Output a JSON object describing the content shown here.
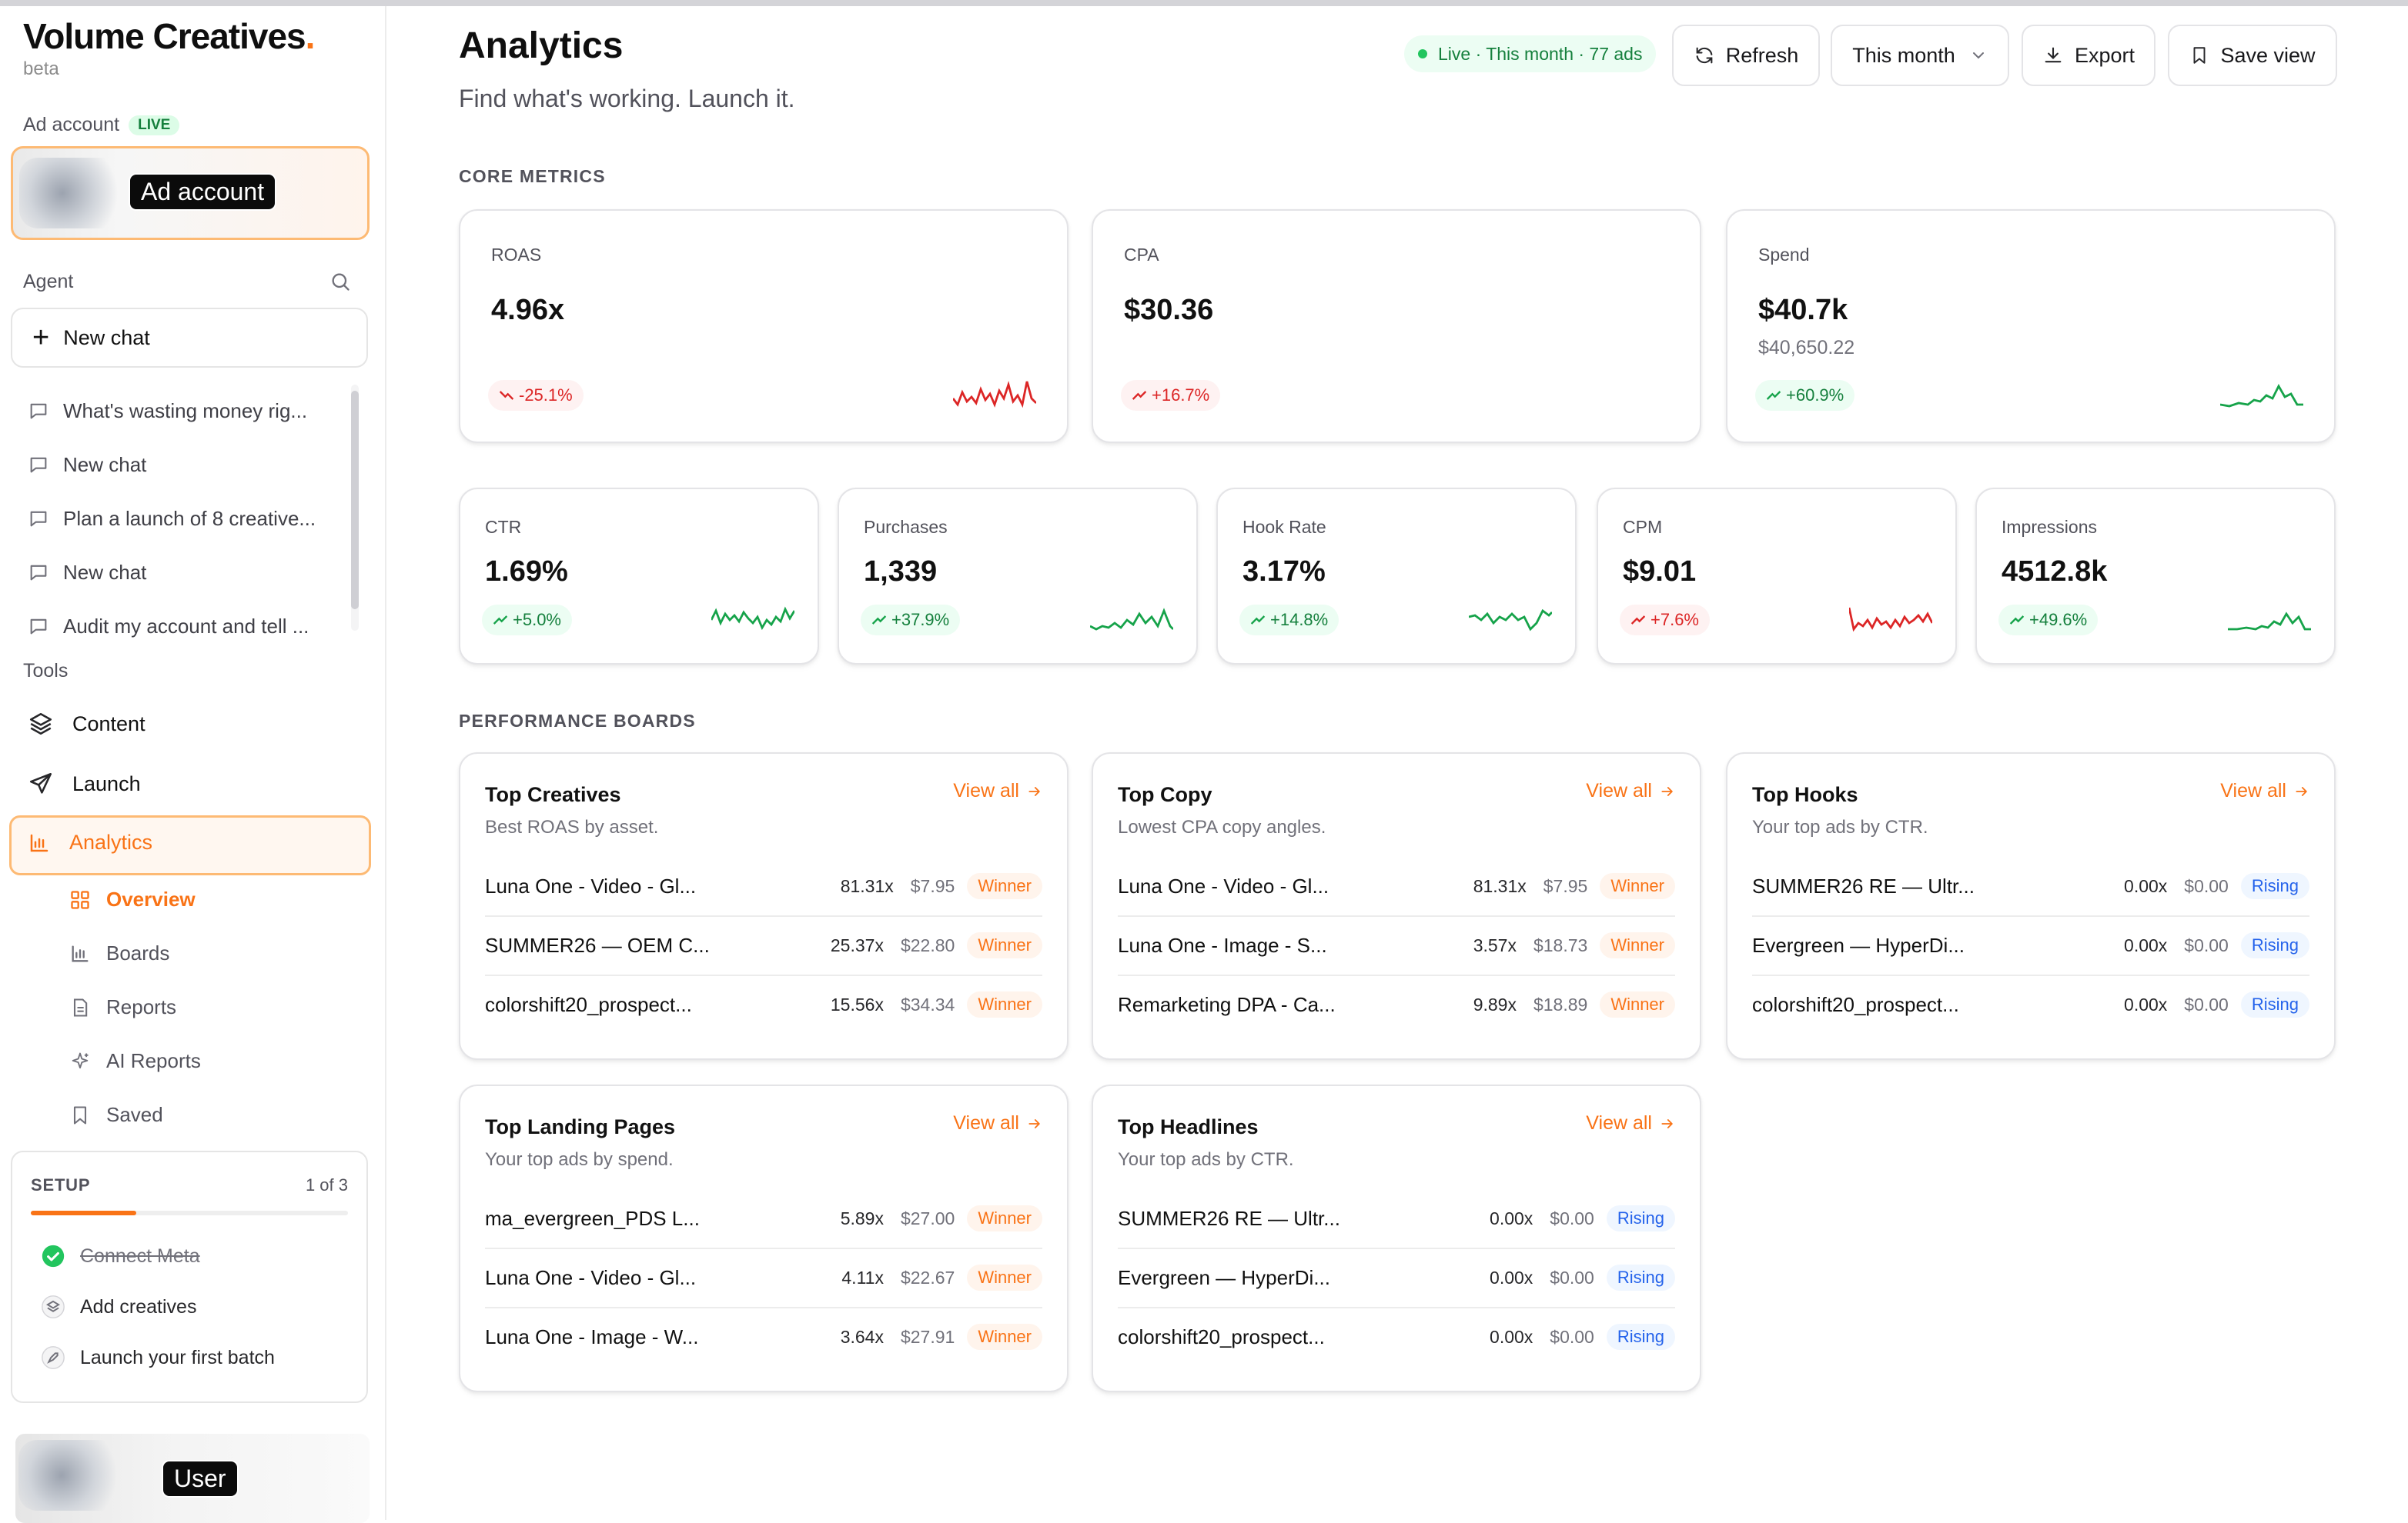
{
  "brand": {
    "name": "Volume Creatives",
    "dot": ".",
    "tag": "beta"
  },
  "sidebar": {
    "ad_account_label": "Ad account",
    "ad_account_badge": "LIVE",
    "ad_account_overlay": "Ad account",
    "agent_label": "Agent",
    "new_chat_label": "New chat",
    "chats": [
      "What's wasting money rig...",
      "New chat",
      "Plan a launch of 8 creative...",
      "New chat",
      "Audit my account and tell ..."
    ],
    "tools_label": "Tools",
    "tools": [
      "Content",
      "Launch",
      "Analytics"
    ],
    "analytics_sub": [
      "Overview",
      "Boards",
      "Reports",
      "AI Reports",
      "Saved"
    ],
    "setup": {
      "title": "SETUP",
      "count": "1 of 3",
      "progress": 0.333,
      "steps": [
        "Connect Meta",
        "Add creatives",
        "Launch your first batch"
      ]
    },
    "user_overlay": "User"
  },
  "header": {
    "title": "Analytics",
    "subtitle": "Find what's working. Launch it.",
    "live_pill": "Live · This month · 77 ads",
    "refresh": "Refresh",
    "range": "This month",
    "export": "Export",
    "save_view": "Save view"
  },
  "core": {
    "label": "CORE METRICS",
    "big": [
      {
        "label": "ROAS",
        "value": "4.96x",
        "sub": "",
        "delta": "-25.1%",
        "trend": "neg"
      },
      {
        "label": "CPA",
        "value": "$30.36",
        "sub": "",
        "delta": "+16.7%",
        "trend": "neg"
      },
      {
        "label": "Spend",
        "value": "$40.7k",
        "sub": "$40,650.22",
        "delta": "+60.9%",
        "trend": "pos"
      }
    ],
    "small": [
      {
        "label": "CTR",
        "value": "1.69%",
        "delta": "+5.0%",
        "trend": "pos"
      },
      {
        "label": "Purchases",
        "value": "1,339",
        "delta": "+37.9%",
        "trend": "pos"
      },
      {
        "label": "Hook Rate",
        "value": "3.17%",
        "delta": "+14.8%",
        "trend": "pos"
      },
      {
        "label": "CPM",
        "value": "$9.01",
        "delta": "+7.6%",
        "trend": "neg"
      },
      {
        "label": "Impressions",
        "value": "4512.8k",
        "delta": "+49.6%",
        "trend": "pos"
      }
    ]
  },
  "boards": {
    "label": "PERFORMANCE BOARDS",
    "view_all": "View all",
    "items": [
      {
        "title": "Top Creatives",
        "sub": "Best ROAS by asset.",
        "rows": [
          {
            "name": "Luna One - Video - Gl...",
            "roas": "81.31x",
            "cost": "$7.95",
            "tag": "Winner"
          },
          {
            "name": "SUMMER26 — OEM C...",
            "roas": "25.37x",
            "cost": "$22.80",
            "tag": "Winner"
          },
          {
            "name": "colorshift20_prospect...",
            "roas": "15.56x",
            "cost": "$34.34",
            "tag": "Winner"
          }
        ]
      },
      {
        "title": "Top Copy",
        "sub": "Lowest CPA copy angles.",
        "rows": [
          {
            "name": "Luna One - Video - Gl...",
            "roas": "81.31x",
            "cost": "$7.95",
            "tag": "Winner"
          },
          {
            "name": "Luna One - Image - S...",
            "roas": "3.57x",
            "cost": "$18.73",
            "tag": "Winner"
          },
          {
            "name": "Remarketing DPA - Ca...",
            "roas": "9.89x",
            "cost": "$18.89",
            "tag": "Winner"
          }
        ]
      },
      {
        "title": "Top Hooks",
        "sub": "Your top ads by CTR.",
        "rows": [
          {
            "name": "SUMMER26 RE — Ultr...",
            "roas": "0.00x",
            "cost": "$0.00",
            "tag": "Rising"
          },
          {
            "name": "Evergreen — HyperDi...",
            "roas": "0.00x",
            "cost": "$0.00",
            "tag": "Rising"
          },
          {
            "name": "colorshift20_prospect...",
            "roas": "0.00x",
            "cost": "$0.00",
            "tag": "Rising"
          }
        ]
      },
      {
        "title": "Top Landing Pages",
        "sub": "Your top ads by spend.",
        "rows": [
          {
            "name": "ma_evergreen_PDS L...",
            "roas": "5.89x",
            "cost": "$27.00",
            "tag": "Winner"
          },
          {
            "name": "Luna One - Video - Gl...",
            "roas": "4.11x",
            "cost": "$22.67",
            "tag": "Winner"
          },
          {
            "name": "Luna One - Image - W...",
            "roas": "3.64x",
            "cost": "$27.91",
            "tag": "Winner"
          }
        ]
      },
      {
        "title": "Top Headlines",
        "sub": "Your top ads by CTR.",
        "rows": [
          {
            "name": "SUMMER26 RE — Ultr...",
            "roas": "0.00x",
            "cost": "$0.00",
            "tag": "Rising"
          },
          {
            "name": "Evergreen — HyperDi...",
            "roas": "0.00x",
            "cost": "$0.00",
            "tag": "Rising"
          },
          {
            "name": "colorshift20_prospect...",
            "roas": "0.00x",
            "cost": "$0.00",
            "tag": "Rising"
          }
        ]
      }
    ]
  },
  "colors": {
    "accent": "#f97316",
    "positive": "#16a34a",
    "negative": "#dc2626",
    "rising": "#2563eb"
  }
}
